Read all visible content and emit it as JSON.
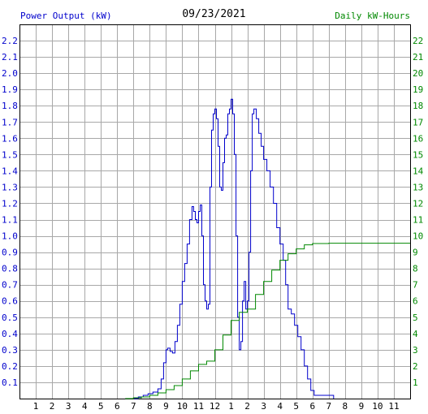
{
  "header": {
    "left_title": "Power Output (kW)",
    "date": "09/23/2021",
    "right_title": "Daily kW-Hours"
  },
  "colors": {
    "power_line": "#0000cc",
    "energy_line": "#008800",
    "grid": "#a8a8a8",
    "frame": "#000000"
  },
  "chart_data": {
    "type": "line",
    "grid": true,
    "x_ticks": [
      "1",
      "2",
      "3",
      "4",
      "5",
      "6",
      "7",
      "8",
      "9",
      "10",
      "11",
      "12",
      "1",
      "2",
      "3",
      "4",
      "5",
      "6",
      "7",
      "8",
      "9",
      "10",
      "11"
    ],
    "x_hour_range": [
      0,
      24
    ],
    "y_left": {
      "label": "Power Output (kW)",
      "range": [
        0,
        2.3
      ],
      "ticks": [
        "0.1",
        "0.2",
        "0.3",
        "0.4",
        "0.5",
        "0.6",
        "0.7",
        "0.8",
        "0.9",
        "1.0",
        "1.1",
        "1.2",
        "1.3",
        "1.4",
        "1.5",
        "1.6",
        "1.7",
        "1.8",
        "1.9",
        "2.0",
        "2.1",
        "2.2"
      ]
    },
    "y_right": {
      "label": "Daily kW-Hours",
      "range": [
        0,
        23
      ],
      "ticks": [
        "1",
        "2",
        "3",
        "4",
        "5",
        "6",
        "7",
        "8",
        "9",
        "10",
        "11",
        "12",
        "13",
        "14",
        "15",
        "16",
        "17",
        "18",
        "19",
        "20",
        "21",
        "22"
      ]
    },
    "series": [
      {
        "name": "Power Output (kW)",
        "axis": "left",
        "points": [
          [
            6.5,
            0
          ],
          [
            7.0,
            0
          ],
          [
            7.3,
            0.01
          ],
          [
            7.6,
            0.02
          ],
          [
            7.9,
            0.03
          ],
          [
            8.2,
            0.04
          ],
          [
            8.5,
            0.06
          ],
          [
            8.7,
            0.12
          ],
          [
            8.85,
            0.22
          ],
          [
            9.0,
            0.3
          ],
          [
            9.1,
            0.31
          ],
          [
            9.25,
            0.29
          ],
          [
            9.4,
            0.28
          ],
          [
            9.55,
            0.35
          ],
          [
            9.7,
            0.45
          ],
          [
            9.85,
            0.58
          ],
          [
            10.0,
            0.72
          ],
          [
            10.15,
            0.83
          ],
          [
            10.3,
            0.95
          ],
          [
            10.45,
            1.1
          ],
          [
            10.6,
            1.18
          ],
          [
            10.7,
            1.15
          ],
          [
            10.8,
            1.1
          ],
          [
            10.9,
            1.08
          ],
          [
            11.0,
            1.15
          ],
          [
            11.1,
            1.19
          ],
          [
            11.2,
            1.0
          ],
          [
            11.3,
            0.7
          ],
          [
            11.4,
            0.6
          ],
          [
            11.5,
            0.55
          ],
          [
            11.6,
            0.58
          ],
          [
            11.7,
            1.3
          ],
          [
            11.8,
            1.65
          ],
          [
            11.9,
            1.75
          ],
          [
            12.0,
            1.78
          ],
          [
            12.1,
            1.72
          ],
          [
            12.2,
            1.55
          ],
          [
            12.3,
            1.3
          ],
          [
            12.4,
            1.28
          ],
          [
            12.5,
            1.45
          ],
          [
            12.6,
            1.6
          ],
          [
            12.7,
            1.62
          ],
          [
            12.8,
            1.75
          ],
          [
            12.9,
            1.78
          ],
          [
            13.0,
            1.84
          ],
          [
            13.1,
            1.75
          ],
          [
            13.2,
            1.5
          ],
          [
            13.3,
            1.0
          ],
          [
            13.4,
            0.5
          ],
          [
            13.5,
            0.3
          ],
          [
            13.6,
            0.35
          ],
          [
            13.7,
            0.6
          ],
          [
            13.8,
            0.72
          ],
          [
            13.9,
            0.55
          ],
          [
            14.0,
            0.6
          ],
          [
            14.1,
            0.9
          ],
          [
            14.2,
            1.4
          ],
          [
            14.3,
            1.75
          ],
          [
            14.4,
            1.78
          ],
          [
            14.55,
            1.72
          ],
          [
            14.7,
            1.63
          ],
          [
            14.85,
            1.55
          ],
          [
            15.0,
            1.47
          ],
          [
            15.2,
            1.4
          ],
          [
            15.4,
            1.3
          ],
          [
            15.6,
            1.2
          ],
          [
            15.8,
            1.05
          ],
          [
            16.0,
            0.95
          ],
          [
            16.2,
            0.85
          ],
          [
            16.35,
            0.7
          ],
          [
            16.5,
            0.55
          ],
          [
            16.7,
            0.52
          ],
          [
            16.9,
            0.45
          ],
          [
            17.1,
            0.38
          ],
          [
            17.3,
            0.3
          ],
          [
            17.5,
            0.2
          ],
          [
            17.7,
            0.12
          ],
          [
            17.9,
            0.05
          ],
          [
            18.1,
            0.02
          ],
          [
            18.5,
            0.02
          ],
          [
            19.0,
            0.02
          ],
          [
            19.3,
            0.0
          ]
        ]
      },
      {
        "name": "Daily kW-Hours",
        "axis": "right",
        "points": [
          [
            6.5,
            0
          ],
          [
            7.0,
            0.05
          ],
          [
            7.5,
            0.1
          ],
          [
            8.0,
            0.2
          ],
          [
            8.5,
            0.35
          ],
          [
            9.0,
            0.55
          ],
          [
            9.5,
            0.8
          ],
          [
            10.0,
            1.2
          ],
          [
            10.5,
            1.7
          ],
          [
            11.0,
            2.1
          ],
          [
            11.5,
            2.3
          ],
          [
            12.0,
            3.0
          ],
          [
            12.5,
            3.9
          ],
          [
            13.0,
            4.8
          ],
          [
            13.5,
            5.3
          ],
          [
            14.0,
            5.5
          ],
          [
            14.5,
            6.4
          ],
          [
            15.0,
            7.2
          ],
          [
            15.5,
            7.9
          ],
          [
            16.0,
            8.5
          ],
          [
            16.5,
            8.9
          ],
          [
            17.0,
            9.2
          ],
          [
            17.5,
            9.45
          ],
          [
            18.0,
            9.53
          ],
          [
            19.0,
            9.55
          ],
          [
            22.0,
            9.55
          ],
          [
            24.0,
            9.55
          ]
        ]
      }
    ]
  }
}
